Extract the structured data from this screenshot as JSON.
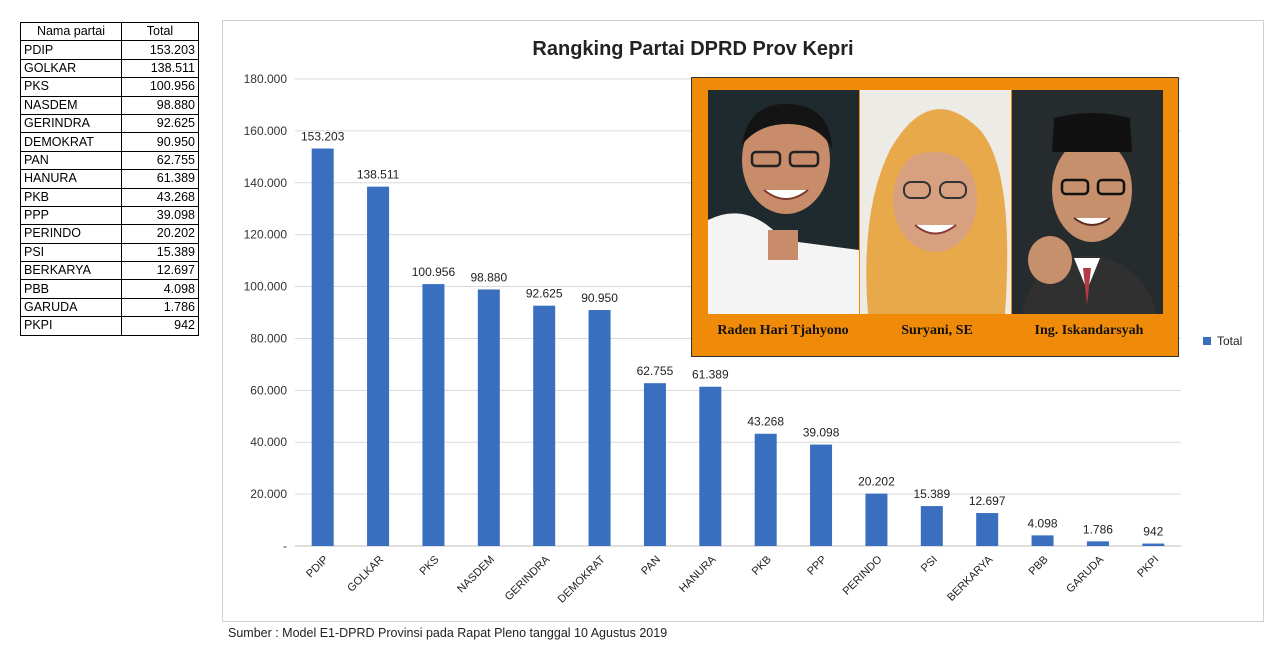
{
  "table": {
    "headers": [
      "Nama partai",
      "Total"
    ],
    "rows": [
      {
        "name": "PDIP",
        "total": "153.203"
      },
      {
        "name": "GOLKAR",
        "total": "138.511"
      },
      {
        "name": "PKS",
        "total": "100.956"
      },
      {
        "name": "NASDEM",
        "total": "98.880"
      },
      {
        "name": "GERINDRA",
        "total": "92.625"
      },
      {
        "name": "DEMOKRAT",
        "total": "90.950"
      },
      {
        "name": "PAN",
        "total": "62.755"
      },
      {
        "name": "HANURA",
        "total": "61.389"
      },
      {
        "name": "PKB",
        "total": "43.268"
      },
      {
        "name": "PPP",
        "total": "39.098"
      },
      {
        "name": "PERINDO",
        "total": "20.202"
      },
      {
        "name": "PSI",
        "total": "15.389"
      },
      {
        "name": "BERKARYA",
        "total": "12.697"
      },
      {
        "name": "PBB",
        "total": "4.098"
      },
      {
        "name": "GARUDA",
        "total": "1.786"
      },
      {
        "name": "PKPI",
        "total": "942"
      }
    ]
  },
  "chart_data": {
    "type": "bar",
    "title": "Rangking Partai DPRD Prov Kepri",
    "categories": [
      "PDIP",
      "GOLKAR",
      "PKS",
      "NASDEM",
      "GERINDRA",
      "DEMOKRAT",
      "PAN",
      "HANURA",
      "PKB",
      "PPP",
      "PERINDO",
      "PSI",
      "BERKARYA",
      "PBB",
      "GARUDA",
      "PKPI"
    ],
    "series": [
      {
        "name": "Total",
        "values": [
          153203,
          138511,
          100956,
          98880,
          92625,
          90950,
          62755,
          61389,
          43268,
          39098,
          20202,
          15389,
          12697,
          4098,
          1786,
          942
        ]
      }
    ],
    "data_labels": [
      "153.203",
      "138.511",
      "100.956",
      "98.880",
      "92.625",
      "90.950",
      "62.755",
      "61.389",
      "43.268",
      "39.098",
      "20.202",
      "15.389",
      "12.697",
      "4.098",
      "1.786",
      "942"
    ],
    "ylim": [
      0,
      180000
    ],
    "yticks": [
      0,
      20000,
      40000,
      60000,
      80000,
      100000,
      120000,
      140000,
      160000,
      180000
    ],
    "ytick_labels": [
      "-",
      "20.000",
      "40.000",
      "60.000",
      "80.000",
      "100.000",
      "120.000",
      "140.000",
      "160.000",
      "180.000"
    ],
    "grid": true,
    "legend": "right",
    "colors": {
      "bar": "#3a6ebf",
      "grid": "#d9d9d9"
    }
  },
  "photos": {
    "border_color": "#f08b0a",
    "people": [
      {
        "caption": "Raden Hari Tjahyono"
      },
      {
        "caption": "Suryani, SE"
      },
      {
        "caption": "Ing. Iskandarsyah"
      }
    ]
  },
  "source_note": "Sumber : Model E1-DPRD Provinsi pada Rapat Pleno  tanggal 10 Agustus 2019"
}
